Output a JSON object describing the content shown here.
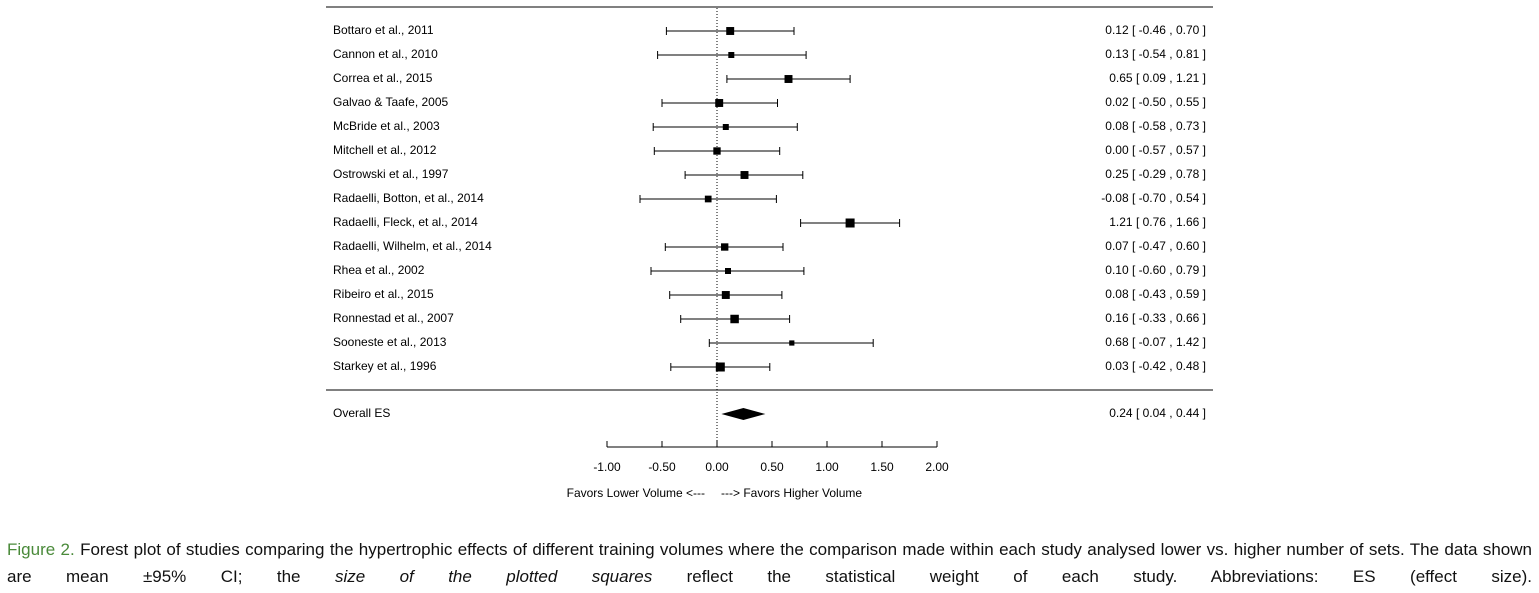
{
  "chart_data": {
    "type": "forest",
    "studies": [
      "Bottaro et al., 2011",
      "Cannon et al., 2010",
      "Correa et al., 2015",
      "Galvao & Taafe, 2005",
      "McBride et al., 2003",
      "Mitchell et al., 2012",
      "Ostrowski et al., 1997",
      "Radaelli, Botton, et al., 2014",
      "Radaelli, Fleck, et al., 2014",
      "Radaelli, Wilhelm, et al., 2014",
      "Rhea et al., 2002",
      "Ribeiro et al., 2015",
      "Ronnestad et al., 2007",
      "Sooneste et al., 2013",
      "Starkey et al., 1996"
    ],
    "estimates": [
      0.12,
      0.13,
      0.65,
      0.02,
      0.08,
      0.0,
      0.25,
      -0.08,
      1.21,
      0.07,
      0.1,
      0.08,
      0.16,
      0.68,
      0.03
    ],
    "lower": [
      -0.46,
      -0.54,
      0.09,
      -0.5,
      -0.58,
      -0.57,
      -0.29,
      -0.7,
      0.76,
      -0.47,
      -0.6,
      -0.43,
      -0.33,
      -0.07,
      -0.42
    ],
    "upper": [
      0.7,
      0.81,
      1.21,
      0.55,
      0.73,
      0.57,
      0.78,
      0.54,
      1.66,
      0.6,
      0.79,
      0.59,
      0.66,
      1.42,
      0.48
    ],
    "weights": [
      7,
      4,
      7,
      7,
      4,
      6,
      7,
      5,
      9,
      6,
      4,
      7,
      8,
      3,
      9
    ],
    "value_labels": [
      "0.12 [ -0.46 , 0.70 ]",
      "0.13 [ -0.54 , 0.81 ]",
      "0.65 [ 0.09 , 1.21 ]",
      "0.02 [ -0.50 , 0.55 ]",
      "0.08 [ -0.58 , 0.73 ]",
      "0.00 [ -0.57 , 0.57 ]",
      "0.25 [ -0.29 , 0.78 ]",
      "-0.08 [ -0.70 , 0.54 ]",
      "1.21 [ 0.76 , 1.66 ]",
      "0.07 [ -0.47 , 0.60 ]",
      "0.10 [ -0.60 , 0.79 ]",
      "0.08 [ -0.43 , 0.59 ]",
      "0.16 [ -0.33 , 0.66 ]",
      "0.68 [ -0.07 , 1.42 ]",
      "0.03 [ -0.42 , 0.48 ]"
    ],
    "overall": {
      "name": "Overall ES",
      "estimate": 0.24,
      "lower": 0.04,
      "upper": 0.44,
      "value_label": "0.24 [ 0.04 , 0.44 ]"
    },
    "xlim": [
      -1,
      2
    ],
    "xticks": [
      {
        "value": -1,
        "label": "-1.00"
      },
      {
        "value": -0.5,
        "label": "-0.50"
      },
      {
        "value": 0,
        "label": "0.00"
      },
      {
        "value": 0.5,
        "label": "0.50"
      },
      {
        "value": 1,
        "label": "1.00"
      },
      {
        "value": 1.5,
        "label": "1.50"
      },
      {
        "value": 2,
        "label": "2.00"
      }
    ],
    "xlabel_left": "Favors Lower Volume <---",
    "xlabel_right": "---> Favors Higher Volume"
  },
  "caption": {
    "label": "Figure 2.",
    "text": [
      "Forest plot of studies comparing the hypertrophic effects of different training volumes where the comparison made within each study analysed lower vs. higher number of sets. The data shown are mean ±95% CI; the",
      "size of the plotted squares",
      "reflect the statistical weight of each study. Abbreviations: ES (effect size)."
    ]
  }
}
